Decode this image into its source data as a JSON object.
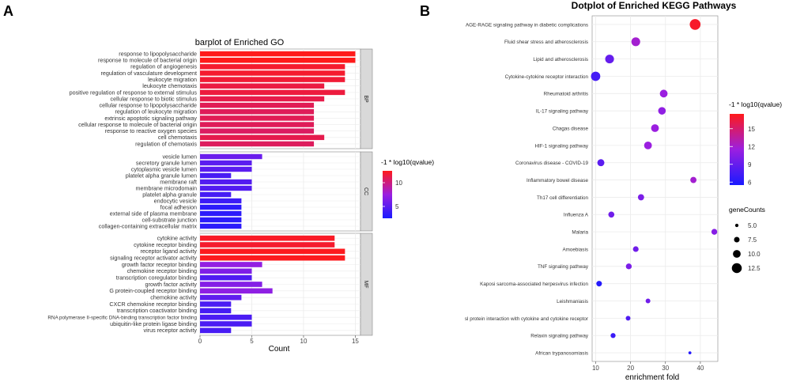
{
  "figure": {
    "panel_a_letter": "A",
    "panel_b_letter": "B"
  },
  "colors": {
    "low": "#1a1aff",
    "mid": "#9b1fe0",
    "high": "#ff1a1a",
    "strip_bg": "#d9d9d9",
    "grid": "#ebebeb"
  },
  "chart_data": [
    {
      "type": "bar",
      "orientation": "horizontal",
      "title": "barplot of Enriched GO",
      "xlabel": "Count",
      "xlim": [
        0,
        15.5
      ],
      "xticks": [
        0,
        5,
        10,
        15
      ],
      "legend": {
        "title": "-1 * log10(qvalue)",
        "ticks": [
          5,
          10
        ],
        "range": [
          2.5,
          12.5
        ],
        "placement": "right"
      },
      "facets": [
        {
          "name": "BP",
          "categories": [
            "response to lipopolysaccharide",
            "response to molecule of bacterial origin",
            "regulation of angiogenesis",
            "regulation of vasculature development",
            "leukocyte migration",
            "leukocyte chemotaxis",
            "positive regulation of response to external stimulus",
            "cellular response to biotic stimulus",
            "cellular response to lipopolysaccharide",
            "regulation of leukocyte migration",
            "extrinsic apoptotic signaling pathway",
            "cellular response to molecule of bacterial origin",
            "response to reactive oxygen species",
            "cell chemotaxis",
            "regulation of chemotaxis"
          ],
          "values": [
            15,
            15,
            14,
            14,
            14,
            12,
            14,
            12,
            11,
            11,
            11,
            11,
            11,
            12,
            11
          ],
          "color_values": [
            12.5,
            12.5,
            12,
            12,
            11.8,
            11.5,
            11.6,
            11.3,
            11,
            10.9,
            11,
            10.9,
            10.7,
            11.2,
            10.8
          ]
        },
        {
          "name": "CC",
          "categories": [
            "vesicle lumen",
            "secretory granule lumen",
            "cytoplasmic vesicle lumen",
            "platelet alpha granule lumen",
            "membrane raft",
            "membrane microdomain",
            "platelet alpha granule",
            "endocytic vesicle",
            "focal adhesion",
            "external side of plasma membrane",
            "cell-substrate junction",
            "collagen-containing extracellular matrix"
          ],
          "values": [
            6,
            5,
            5,
            3,
            5,
            5,
            3,
            4,
            4,
            4,
            4,
            4
          ],
          "color_values": [
            5.6,
            5,
            5,
            4.3,
            4.7,
            4.7,
            4.2,
            3.8,
            3.2,
            3.2,
            3.2,
            3.2
          ]
        },
        {
          "name": "MF",
          "categories": [
            "cytokine activity",
            "cytokine receptor binding",
            "receptor ligand activity",
            "signaling receptor activator activity",
            "growth factor receptor binding",
            "chemokine receptor binding",
            "transcription coregulator binding",
            "growth factor activity",
            "G protein-coupled receptor binding",
            "chemokine activity",
            "CXCR chemokine receptor binding",
            "transcription coactivator binding",
            "RNA polymerase II-specific DNA-binding transcription factor binding",
            "ubiquitin-like protein ligase binding",
            "virus receptor activity"
          ],
          "values": [
            13,
            13,
            14,
            14,
            6,
            5,
            5,
            6,
            7,
            4,
            3,
            3,
            5,
            5,
            3
          ],
          "color_values": [
            12.2,
            12,
            12.4,
            12.4,
            7.2,
            6.4,
            4.6,
            6.6,
            7,
            5.2,
            4.4,
            4.2,
            4.4,
            4.4,
            4.3
          ]
        }
      ]
    },
    {
      "type": "scatter",
      "title": "Dotplot of Enriched KEGG Pathways",
      "xlabel": "enrichment fold",
      "xlim": [
        9,
        45
      ],
      "xticks": [
        10,
        20,
        30,
        40
      ],
      "categories": [
        "AGE-RAGE signaling pathway in diabetic complications",
        "Fluid shear stress and atherosclerosis",
        "Lipid and atherosclerosis",
        "Cytokine-cytokine receptor interaction",
        "Rheumatoid arthritis",
        "IL-17 signaling pathway",
        "Chagas disease",
        "HIF-1 signaling pathway",
        "Coronavirus disease - COVID-19",
        "Inflammatory bowel disease",
        "Th17 cell differentiation",
        "Influenza A",
        "Malaria",
        "Amoebiasis",
        "TNF signaling pathway",
        "Kaposi sarcoma-associated herpesvirus infection",
        "Leishmaniasis",
        "sl protein interaction with cytokine and cytokine receptor",
        "Relaxin signaling pathway",
        "African trypanosomiasis"
      ],
      "x": [
        38.5,
        21.5,
        14,
        10,
        29.5,
        29,
        27,
        25,
        11.5,
        38,
        23,
        14.5,
        44,
        21.5,
        19.5,
        11,
        25,
        19.3,
        15,
        37
      ],
      "gene_counts": [
        13.5,
        11.2,
        11.2,
        11.8,
        10,
        9.8,
        10,
        10,
        9.2,
        8.2,
        8.2,
        8,
        7.8,
        7.6,
        7.8,
        7.5,
        6.5,
        6.5,
        6.8,
        4.5
      ],
      "qvalue_color": [
        17,
        12,
        9,
        7.5,
        11.5,
        11,
        11.5,
        11.5,
        8.5,
        12,
        10,
        9.5,
        10.5,
        9.5,
        10,
        6,
        9.5,
        8,
        7,
        6
      ],
      "legend_color": {
        "title": "-1 * log10(qvalue)",
        "ticks": [
          6,
          9,
          12,
          15
        ],
        "range": [
          5.5,
          17.5
        ],
        "placement": "right"
      },
      "legend_size": {
        "title": "geneCounts",
        "ticks": [
          "5.0",
          "7.5",
          "10.0",
          "12.5"
        ],
        "placement": "right"
      }
    }
  ]
}
